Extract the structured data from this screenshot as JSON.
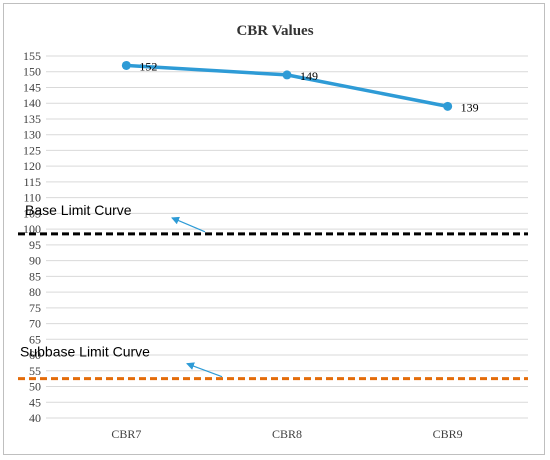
{
  "chart_data": {
    "type": "line",
    "title": "CBR Values",
    "xlabel": "",
    "ylabel": "",
    "categories": [
      "CBR7",
      "CBR8",
      "CBR9"
    ],
    "ylim": [
      40,
      155
    ],
    "ytick_step": 5,
    "grid": true,
    "series": [
      {
        "values": [
          152,
          149,
          139
        ],
        "color": "#2E9BD6",
        "data_labels": [
          "152",
          "149",
          "139"
        ]
      }
    ],
    "reference_lines": [
      {
        "label": "Base Limit Curve",
        "value": 98.5,
        "color": "#000000",
        "style": "dashed"
      },
      {
        "label": "Subbase Limit Curve",
        "value": 52.5,
        "color": "#E46C0A",
        "style": "dashed"
      }
    ],
    "annotation_arrow_color": "#2E9BD6"
  }
}
